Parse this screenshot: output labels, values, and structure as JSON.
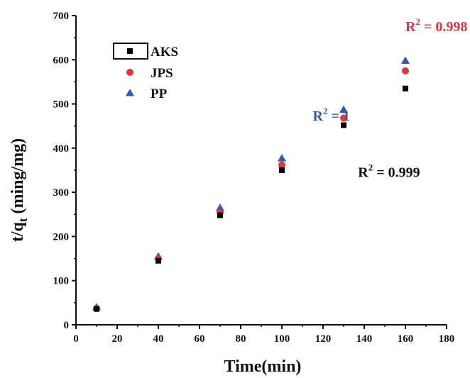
{
  "chart_data": {
    "type": "scatter",
    "title": "",
    "xlabel": "Time(min)",
    "ylabel": {
      "main": "t/q",
      "sub": "t",
      "unit": " (ming/mg)"
    },
    "xlim": [
      0,
      180
    ],
    "ylim": [
      0,
      700
    ],
    "xticks": [
      "0",
      "20",
      "40",
      "60",
      "80",
      "100",
      "120",
      "140",
      "160",
      "180"
    ],
    "yticks": [
      "0",
      "100",
      "200",
      "300",
      "400",
      "500",
      "600",
      "700"
    ],
    "legend_position": "top-left",
    "x": [
      10,
      40,
      70,
      100,
      130,
      160
    ],
    "series": [
      {
        "name": "AKS",
        "marker": "square",
        "color": "#000000",
        "values": [
          36,
          145,
          248,
          350,
          452,
          535
        ]
      },
      {
        "name": "JPS",
        "marker": "circle",
        "color": "#e8323c",
        "values": [
          37,
          150,
          254,
          362,
          468,
          575
        ]
      },
      {
        "name": "PP",
        "marker": "triangle",
        "color": "#2e5bb8",
        "values": [
          40,
          155,
          265,
          377,
          487,
          598
        ]
      }
    ],
    "annotations": [
      {
        "prefix": "R",
        "sup": "2",
        "text": " = 0.998",
        "color": "#e8323c",
        "at": [
          160,
          665
        ]
      },
      {
        "prefix": "R",
        "sup": "2",
        "text": " = 1",
        "color": "#2e5bb8",
        "at": [
          115,
          462
        ]
      },
      {
        "prefix": "R",
        "sup": "2",
        "text": " = 0.999",
        "color": "#111111",
        "at": [
          137,
          335
        ]
      }
    ]
  }
}
